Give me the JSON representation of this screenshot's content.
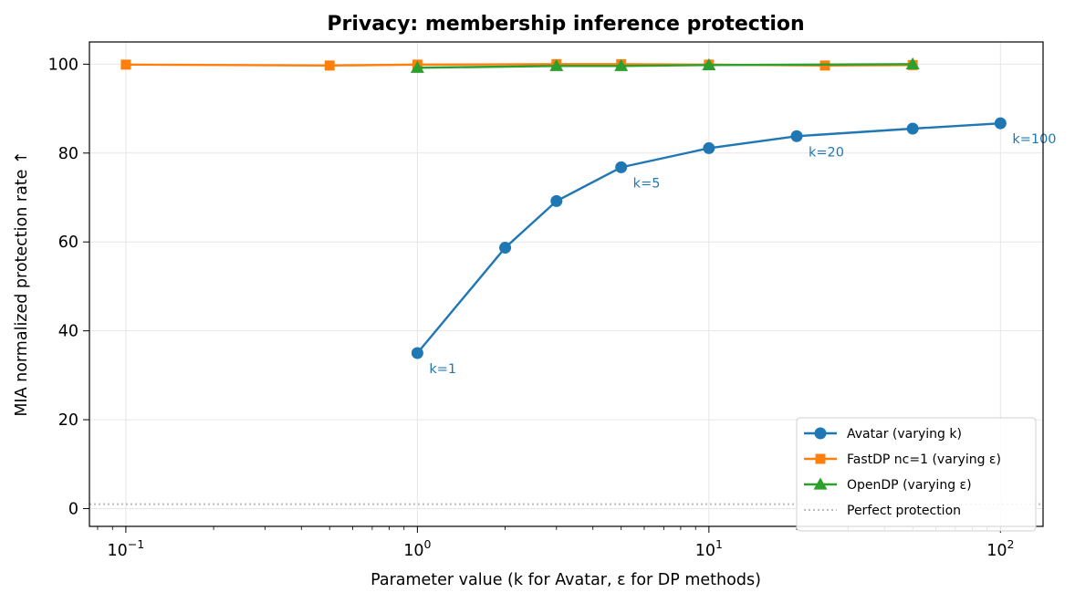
{
  "chart_data": {
    "type": "line",
    "title": "Privacy: membership inference protection",
    "xlabel": "Parameter value (k for Avatar, ε for DP methods)",
    "ylabel": "MIA normalized protection rate ↑",
    "xscale": "log",
    "xlim": [
      0.075,
      140
    ],
    "ylim": [
      -4,
      105
    ],
    "xticks": [
      {
        "value": 0.1,
        "base": "10",
        "exp": "−1"
      },
      {
        "value": 1,
        "base": "10",
        "exp": "0"
      },
      {
        "value": 10,
        "base": "10",
        "exp": "1"
      },
      {
        "value": 100,
        "base": "10",
        "exp": "2"
      }
    ],
    "yticks": [
      0,
      20,
      40,
      60,
      80,
      100
    ],
    "grid": true,
    "legend_position": "lower-right",
    "series": [
      {
        "name": "Avatar (varying k)",
        "color": "#1f77b4",
        "marker": "circle",
        "x": [
          1,
          2,
          3,
          5,
          10,
          20,
          50,
          100
        ],
        "y": [
          35,
          58.7,
          69.2,
          76.8,
          81.1,
          83.8,
          85.5,
          86.7
        ]
      },
      {
        "name": "FastDP nc=1 (varying ε)",
        "color": "#ff7f0e",
        "marker": "square",
        "x": [
          0.1,
          0.5,
          1,
          3,
          5,
          10,
          25,
          50
        ],
        "y": [
          99.9,
          99.7,
          99.9,
          100,
          100,
          99.9,
          99.7,
          99.8
        ]
      },
      {
        "name": "OpenDP (varying ε)",
        "color": "#2ca02c",
        "marker": "triangle",
        "x": [
          1,
          3,
          5,
          10,
          50
        ],
        "y": [
          99.2,
          99.6,
          99.6,
          99.8,
          100
        ]
      }
    ],
    "reference_line": {
      "name": "Perfect protection",
      "y": 1,
      "color": "#bbbbbb",
      "style": "dotted"
    },
    "annotations": [
      {
        "text": "k=1",
        "x": 1,
        "y": 35,
        "color": "#1f77b4"
      },
      {
        "text": "k=5",
        "x": 5,
        "y": 76.8,
        "color": "#1f77b4"
      },
      {
        "text": "k=20",
        "x": 20,
        "y": 83.8,
        "color": "#1f77b4"
      },
      {
        "text": "k=100",
        "x": 100,
        "y": 86.7,
        "color": "#1f77b4"
      }
    ]
  }
}
